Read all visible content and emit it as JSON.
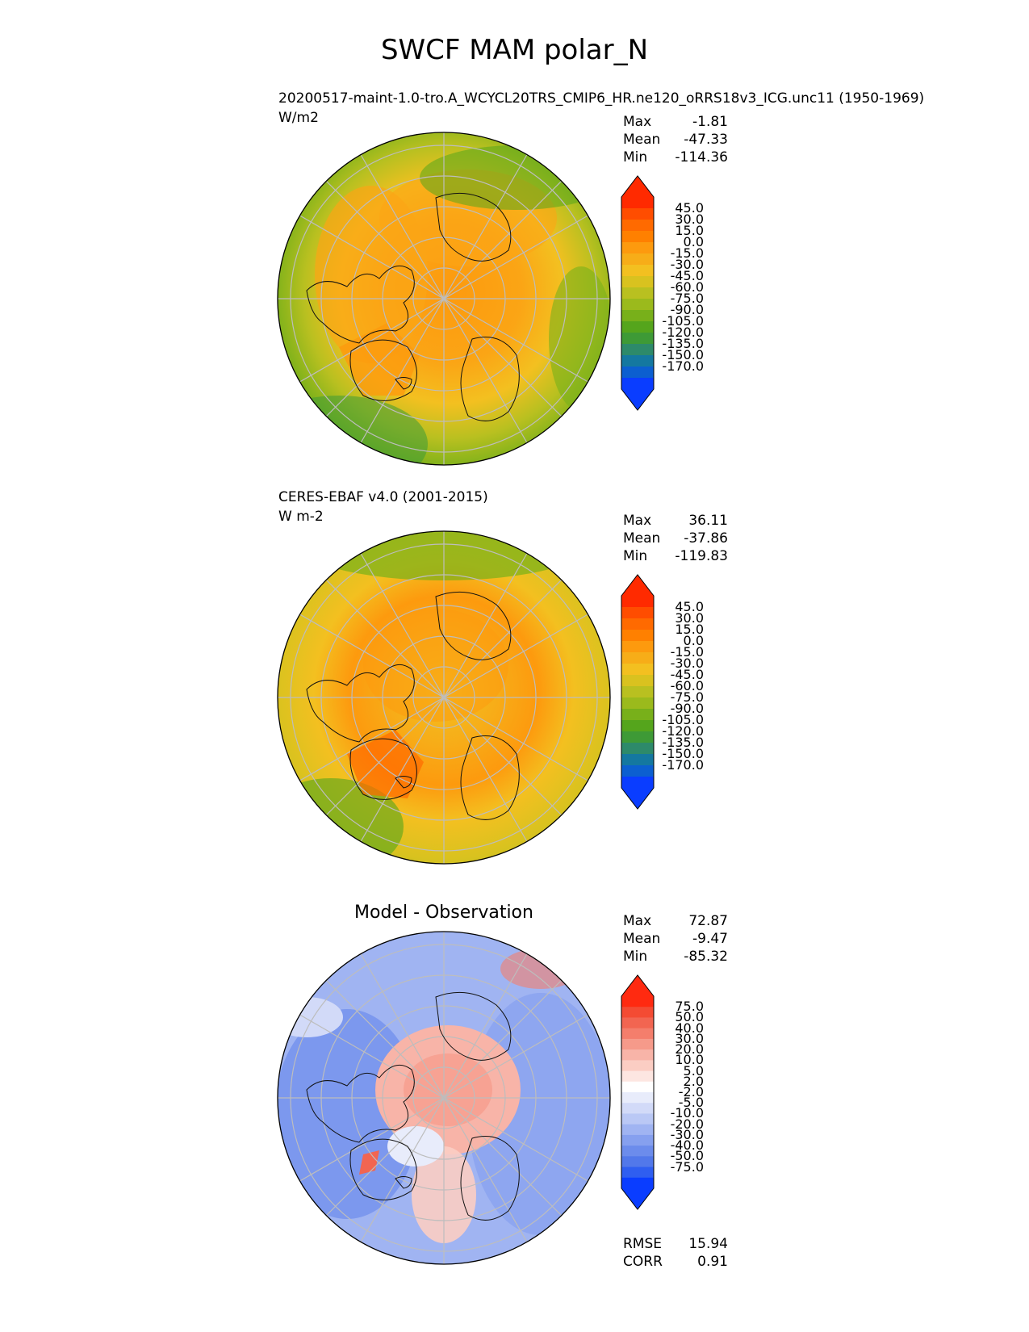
{
  "figure": {
    "title": "SWCF MAM polar_N"
  },
  "panels": [
    {
      "id": "test",
      "subtitle": "20200517-maint-1.0-tro.A_WCYCL20TRS_CMIP6_HR.ne120_oRRS18v3_ICG.unc11 (1950-1969)",
      "units": "W/m2",
      "stats": {
        "max_label": "Max",
        "max": "-1.81",
        "mean_label": "Mean",
        "mean": "-47.33",
        "min_label": "Min",
        "min": "-114.36"
      },
      "colorbar": {
        "labels": [
          "45.0",
          "30.0",
          "15.0",
          "0.0",
          "-15.0",
          "-30.0",
          "-45.0",
          "-60.0",
          "-75.0",
          "-90.0",
          "-105.0",
          "-120.0",
          "-135.0",
          "-150.0",
          "-170.0"
        ],
        "colors": [
          "#ff2a00",
          "#ff4d00",
          "#ff6a00",
          "#ff8000",
          "#fd9a0e",
          "#f7ad18",
          "#f3c020",
          "#d9c21f",
          "#b9c020",
          "#9bba1c",
          "#78b01a",
          "#55a51c",
          "#3e9a36",
          "#2d8a6a",
          "#1478a0",
          "#0c5fd0",
          "#0a3dff"
        ],
        "extend_top_color": "#ff2a00",
        "extend_bottom_color": "#0a3dff"
      }
    },
    {
      "id": "reference",
      "subtitle": "CERES-EBAF v4.0 (2001-2015)",
      "units": "W m-2",
      "stats": {
        "max_label": "Max",
        "max": "36.11",
        "mean_label": "Mean",
        "mean": "-37.86",
        "min_label": "Min",
        "min": "-119.83"
      },
      "colorbar": {
        "labels": [
          "45.0",
          "30.0",
          "15.0",
          "0.0",
          "-15.0",
          "-30.0",
          "-45.0",
          "-60.0",
          "-75.0",
          "-90.0",
          "-105.0",
          "-120.0",
          "-135.0",
          "-150.0",
          "-170.0"
        ],
        "colors": [
          "#ff2a00",
          "#ff4d00",
          "#ff6a00",
          "#ff8000",
          "#fd9a0e",
          "#f7ad18",
          "#f3c020",
          "#d9c21f",
          "#b9c020",
          "#9bba1c",
          "#78b01a",
          "#55a51c",
          "#3e9a36",
          "#2d8a6a",
          "#1478a0",
          "#0c5fd0",
          "#0a3dff"
        ],
        "extend_top_color": "#ff2a00",
        "extend_bottom_color": "#0a3dff"
      }
    },
    {
      "id": "difference",
      "title": "Model - Observation",
      "stats": {
        "max_label": "Max",
        "max": "72.87",
        "mean_label": "Mean",
        "mean": "-9.47",
        "min_label": "Min",
        "min": "-85.32"
      },
      "colorbar": {
        "labels": [
          "75.0",
          "50.0",
          "40.0",
          "30.0",
          "20.0",
          "10.0",
          "5.0",
          "2.0",
          "-2.0",
          "-5.0",
          "-10.0",
          "-20.0",
          "-30.0",
          "-40.0",
          "-50.0",
          "-75.0"
        ],
        "colors": [
          "#ff2a10",
          "#f44b33",
          "#f26551",
          "#f47e6c",
          "#f69a8a",
          "#f8b4a8",
          "#fbcdc3",
          "#fde6e1",
          "#ffffff",
          "#e8ecfb",
          "#d2daf8",
          "#bac8f5",
          "#a0b4f2",
          "#86a0ef",
          "#6c8cec",
          "#5278ea",
          "#2f5ef0",
          "#0a3dff"
        ],
        "extend_top_color": "#ff2a10",
        "extend_bottom_color": "#0a3dff"
      },
      "metrics": {
        "rmse_label": "RMSE",
        "rmse": "15.94",
        "corr_label": "CORR",
        "corr": "0.91"
      }
    }
  ],
  "map": {
    "projection": "north-polar-stereographic",
    "gridlines": true,
    "coastlines": true,
    "gridline_color": "#bdbdbd",
    "coastline_color": "#111111"
  }
}
